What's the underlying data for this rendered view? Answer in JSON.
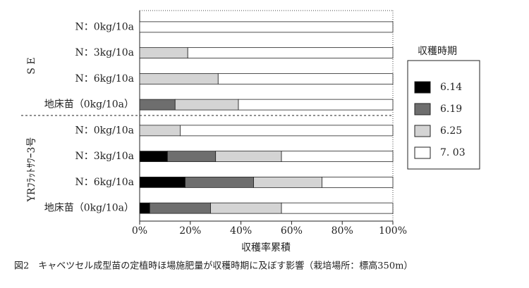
{
  "chart_data": {
    "type": "stacked-bar-horizontal",
    "caption": "図2　キャベツセル成型苗の定植時ほ場施肥量が収穫時期に及ぼす影響（栽培場所：標高350m）",
    "xlabel": "収穫率累積",
    "legend_title": "収穫時期",
    "groups": [
      "S E",
      "YRﾌﾗｯﾄｻﾜｰ3号"
    ],
    "categories": [
      "N：0kg/10a",
      "N：3kg/10a",
      "N：6kg/10a",
      "地床苗（0kg/10a）",
      "N：0kg/10a",
      "N：3kg/10a",
      "N：6kg/10a",
      "地床苗（0kg/10a）"
    ],
    "series": [
      {
        "name": "6.14",
        "color": "#000000",
        "values": [
          0,
          0,
          0,
          0,
          0,
          11,
          18,
          4
        ]
      },
      {
        "name": "6.19",
        "color": "#6e6e6e",
        "values": [
          0,
          0,
          0,
          14,
          0,
          19,
          27,
          24
        ]
      },
      {
        "name": "6.25",
        "color": "#d4d4d4",
        "values": [
          0,
          19,
          31,
          25,
          16,
          26,
          27,
          28
        ]
      },
      {
        "name": "7. 03",
        "color": "#ffffff",
        "values": [
          100,
          81,
          69,
          61,
          84,
          44,
          28,
          44
        ]
      }
    ],
    "xlim": [
      0,
      100
    ],
    "xticks": [
      {
        "value": 0,
        "label": "0%"
      },
      {
        "value": 20,
        "label": "20%"
      },
      {
        "value": 40,
        "label": "40%"
      },
      {
        "value": 60,
        "label": "60%"
      },
      {
        "value": 80,
        "label": "80%"
      },
      {
        "value": 100,
        "label": "100%"
      }
    ]
  }
}
